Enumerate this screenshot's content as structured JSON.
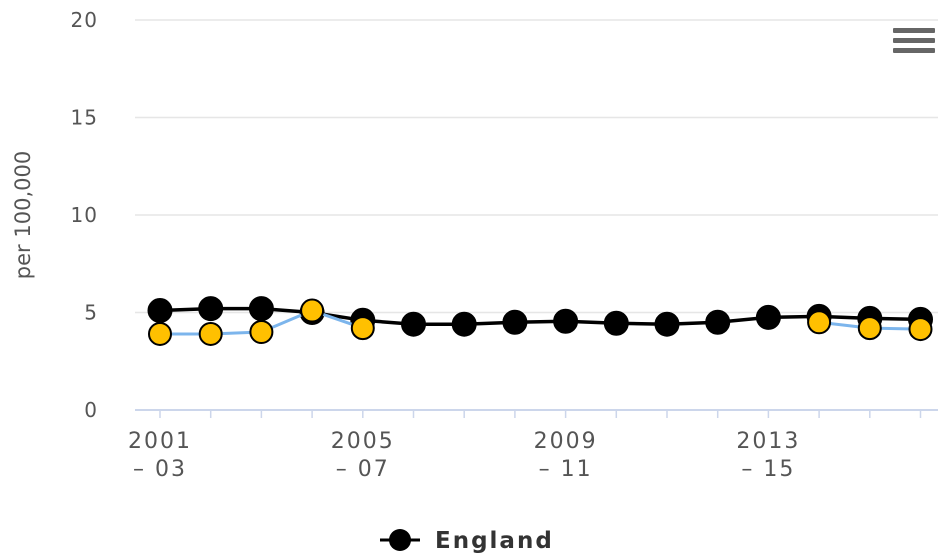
{
  "menu": {
    "icon": "hamburger-menu-icon"
  },
  "colors": {
    "england_line": "#000000",
    "england_marker": "#000000",
    "area_line": "#7cb5ec",
    "area_marker": "#ffc000",
    "gridline": "#e6e6e6",
    "axis": "#ccd6eb"
  },
  "chart_data": {
    "type": "line",
    "ylabel": "per 100,000",
    "ylim": [
      0,
      20
    ],
    "yticks": [
      "0",
      "5",
      "10",
      "15",
      "20"
    ],
    "grid": true,
    "categories": [
      "2001 – 03",
      "2002 – 04",
      "2003 – 05",
      "2004 – 06",
      "2005 – 07",
      "2006 – 08",
      "2007 – 09",
      "2008 – 10",
      "2009 – 11",
      "2010 – 12",
      "2011 – 13",
      "2012 – 14",
      "2013 – 15",
      "2014 – 16",
      "2015 – 17",
      "2016 – 18"
    ],
    "xtick_labels": [
      {
        "index": 0,
        "line1": "2001",
        "line2": "– 03"
      },
      {
        "index": 4,
        "line1": "2005",
        "line2": "– 07"
      },
      {
        "index": 8,
        "line1": "2009",
        "line2": "– 11"
      },
      {
        "index": 12,
        "line1": "2013",
        "line2": "– 15"
      }
    ],
    "series": [
      {
        "values": [
          3.9,
          3.9,
          4.0,
          5.1,
          4.2,
          null,
          null,
          null,
          null,
          null,
          null,
          null,
          null,
          4.5,
          4.2,
          4.15
        ]
      },
      {
        "name": "England",
        "values": [
          5.1,
          5.2,
          5.2,
          5.0,
          4.6,
          4.4,
          4.4,
          4.5,
          4.55,
          4.45,
          4.4,
          4.5,
          4.75,
          4.8,
          4.7,
          4.65
        ]
      }
    ],
    "legend": {
      "position": "bottom-center",
      "label": "England"
    }
  }
}
